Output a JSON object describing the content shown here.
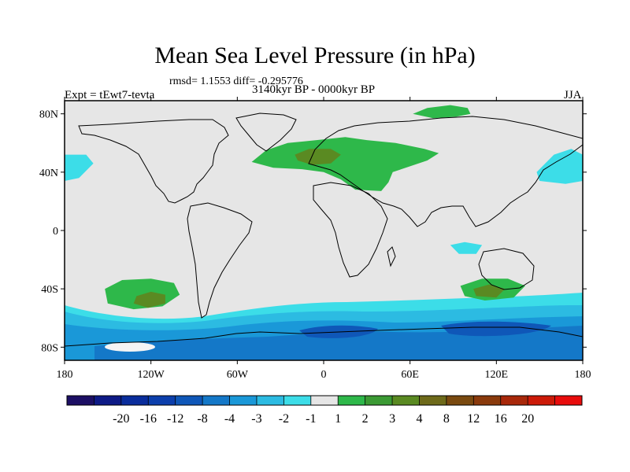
{
  "title": "Mean Sea Level Pressure (in hPa)",
  "subtitle": "rmsd= 1.1553 diff= -0.295776",
  "period": "3140kyr BP - 0000kyr BP",
  "experiment": "Expt = tEwt7-tevta",
  "season": "JJA",
  "lat_labels": [
    {
      "text": "80N",
      "lat": 80
    },
    {
      "text": "40N",
      "lat": 40
    },
    {
      "text": "0",
      "lat": 0
    },
    {
      "text": "40S",
      "lat": -40
    },
    {
      "text": "80S",
      "lat": -80
    }
  ],
  "lon_labels": [
    {
      "text": "180",
      "lon": -180
    },
    {
      "text": "120W",
      "lon": -120
    },
    {
      "text": "60W",
      "lon": -60
    },
    {
      "text": "0",
      "lon": 0
    },
    {
      "text": "60E",
      "lon": 60
    },
    {
      "text": "120E",
      "lon": 120
    },
    {
      "text": "180",
      "lon": 180
    }
  ],
  "colorbar": {
    "colors": [
      "#1c0f64",
      "#0e1a86",
      "#0a2d9c",
      "#0c3fac",
      "#0f57b8",
      "#1478c8",
      "#1a98d8",
      "#2cbbe2",
      "#3cdde8",
      "#e6e6e6",
      "#2eb84a",
      "#3b9a34",
      "#5a8a22",
      "#6e6a1a",
      "#7a4a10",
      "#8a3a0c",
      "#a8280a",
      "#cc1a08",
      "#e80c0c"
    ],
    "labels": [
      "-20",
      "-16",
      "-12",
      "-8",
      "-4",
      "-3",
      "-2",
      "-1",
      "1",
      "2",
      "3",
      "4",
      "8",
      "12",
      "16",
      "20"
    ]
  },
  "regions": [
    {
      "name": "north-atlantic-high",
      "level": "2",
      "color": "#2eb84a",
      "points": [
        [
          -50,
          47
        ],
        [
          -40,
          55
        ],
        [
          -25,
          60
        ],
        [
          -5,
          62
        ],
        [
          15,
          64
        ],
        [
          30,
          62
        ],
        [
          50,
          60
        ],
        [
          70,
          56
        ],
        [
          80,
          53
        ],
        [
          72,
          48
        ],
        [
          60,
          44
        ],
        [
          48,
          40
        ],
        [
          45,
          33
        ],
        [
          40,
          27
        ],
        [
          22,
          28
        ],
        [
          12,
          35
        ],
        [
          0,
          40
        ],
        [
          -15,
          42
        ],
        [
          -35,
          43
        ]
      ]
    },
    {
      "name": "europe-core",
      "level": "3",
      "color": "#5a8a22",
      "points": [
        [
          -20,
          52
        ],
        [
          -10,
          56
        ],
        [
          5,
          56
        ],
        [
          12,
          52
        ],
        [
          5,
          46
        ],
        [
          -8,
          45
        ],
        [
          -18,
          48
        ]
      ]
    },
    {
      "name": "north-asia-high",
      "level": "2",
      "color": "#2eb84a",
      "points": [
        [
          62,
          80
        ],
        [
          72,
          84
        ],
        [
          88,
          86
        ],
        [
          100,
          84
        ],
        [
          102,
          80
        ],
        [
          92,
          78
        ],
        [
          76,
          77
        ]
      ]
    },
    {
      "name": "south-pacific-high",
      "level": "2",
      "color": "#2eb84a",
      "points": [
        [
          -152,
          -40
        ],
        [
          -140,
          -34
        ],
        [
          -120,
          -33
        ],
        [
          -104,
          -36
        ],
        [
          -100,
          -44
        ],
        [
          -112,
          -52
        ],
        [
          -132,
          -54
        ],
        [
          -150,
          -50
        ]
      ]
    },
    {
      "name": "south-pacific-core",
      "level": "3",
      "color": "#5a8a22",
      "points": [
        [
          -130,
          -45
        ],
        [
          -120,
          -42
        ],
        [
          -110,
          -44
        ],
        [
          -110,
          -50
        ],
        [
          -122,
          -53
        ],
        [
          -132,
          -50
        ]
      ]
    },
    {
      "name": "south-australia-high",
      "level": "2",
      "color": "#2eb84a",
      "points": [
        [
          95,
          -38
        ],
        [
          110,
          -33
        ],
        [
          128,
          -33
        ],
        [
          140,
          -38
        ],
        [
          132,
          -46
        ],
        [
          112,
          -48
        ],
        [
          98,
          -45
        ]
      ]
    },
    {
      "name": "south-australia-core",
      "level": "3",
      "color": "#5a8a22",
      "points": [
        [
          104,
          -40
        ],
        [
          115,
          -37
        ],
        [
          126,
          -40
        ],
        [
          120,
          -46
        ],
        [
          106,
          -45
        ]
      ]
    },
    {
      "name": "north-pacific-low",
      "level": "-1",
      "color": "#3cdde8",
      "points": [
        [
          148,
          40
        ],
        [
          160,
          52
        ],
        [
          172,
          56
        ],
        [
          180,
          52
        ],
        [
          180,
          34
        ],
        [
          168,
          32
        ],
        [
          150,
          34
        ]
      ]
    },
    {
      "name": "north-pacific-low-west",
      "level": "-1",
      "color": "#3cdde8",
      "points": [
        [
          -180,
          52
        ],
        [
          -165,
          52
        ],
        [
          -160,
          46
        ],
        [
          -170,
          36
        ],
        [
          -180,
          34
        ]
      ]
    },
    {
      "name": "indian-ocean-low",
      "level": "-1",
      "color": "#3cdde8",
      "points": [
        [
          88,
          -10
        ],
        [
          98,
          -8
        ],
        [
          110,
          -10
        ],
        [
          106,
          -16
        ],
        [
          94,
          -16
        ]
      ]
    }
  ]
}
